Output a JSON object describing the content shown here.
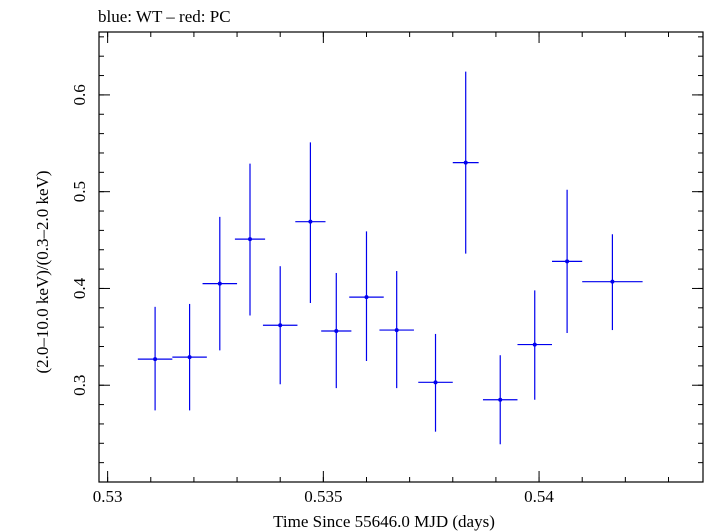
{
  "chart_data": {
    "type": "scatter",
    "title": "blue: WT – red: PC",
    "xlabel": "Time Since 55646.0 MJD (days)",
    "ylabel": "(2.0–10.0 keV)/(0.3–2.0 keV)",
    "xlim": [
      0.5298,
      0.5438
    ],
    "ylim": [
      0.2,
      0.665
    ],
    "x_ticks": [
      0.53,
      0.535,
      0.54
    ],
    "x_tick_labels": [
      "0.53",
      "0.535",
      "0.54"
    ],
    "y_ticks": [
      0.3,
      0.4,
      0.5,
      0.6
    ],
    "y_tick_labels": [
      "0.3",
      "0.4",
      "0.5",
      "0.6"
    ],
    "x_minor_step": 0.001,
    "y_minor_step": 0.02,
    "grid": false,
    "legend": "none",
    "series": [
      {
        "color": "#0000ee",
        "points": [
          {
            "x": 0.5311,
            "y": 0.327,
            "xerr": 0.0004,
            "y_low": 0.274,
            "y_high": 0.381
          },
          {
            "x": 0.5319,
            "y": 0.329,
            "xerr": 0.0004,
            "y_low": 0.274,
            "y_high": 0.384
          },
          {
            "x": 0.5326,
            "y": 0.405,
            "xerr": 0.0004,
            "y_low": 0.336,
            "y_high": 0.474
          },
          {
            "x": 0.5333,
            "y": 0.451,
            "xerr": 0.00035,
            "y_low": 0.372,
            "y_high": 0.529
          },
          {
            "x": 0.534,
            "y": 0.362,
            "xerr": 0.0004,
            "y_low": 0.301,
            "y_high": 0.423
          },
          {
            "x": 0.5347,
            "y": 0.469,
            "xerr": 0.00035,
            "y_low": 0.385,
            "y_high": 0.551
          },
          {
            "x": 0.5353,
            "y": 0.356,
            "xerr": 0.00035,
            "y_low": 0.297,
            "y_high": 0.416
          },
          {
            "x": 0.536,
            "y": 0.391,
            "xerr": 0.0004,
            "y_low": 0.325,
            "y_high": 0.459
          },
          {
            "x": 0.5367,
            "y": 0.357,
            "xerr": 0.0004,
            "y_low": 0.297,
            "y_high": 0.418
          },
          {
            "x": 0.5376,
            "y": 0.303,
            "xerr": 0.0004,
            "y_low": 0.252,
            "y_high": 0.353
          },
          {
            "x": 0.5383,
            "y": 0.53,
            "xerr": 0.0003,
            "y_low": 0.436,
            "y_high": 0.624
          },
          {
            "x": 0.5391,
            "y": 0.285,
            "xerr": 0.0004,
            "y_low": 0.239,
            "y_high": 0.331
          },
          {
            "x": 0.5399,
            "y": 0.342,
            "xerr": 0.0004,
            "y_low": 0.285,
            "y_high": 0.398
          },
          {
            "x": 0.54065,
            "y": 0.428,
            "xerr": 0.00035,
            "y_low": 0.354,
            "y_high": 0.502
          },
          {
            "x": 0.5417,
            "y": 0.407,
            "xerr": 0.0007,
            "y_low": 0.357,
            "y_high": 0.456
          }
        ]
      }
    ]
  }
}
